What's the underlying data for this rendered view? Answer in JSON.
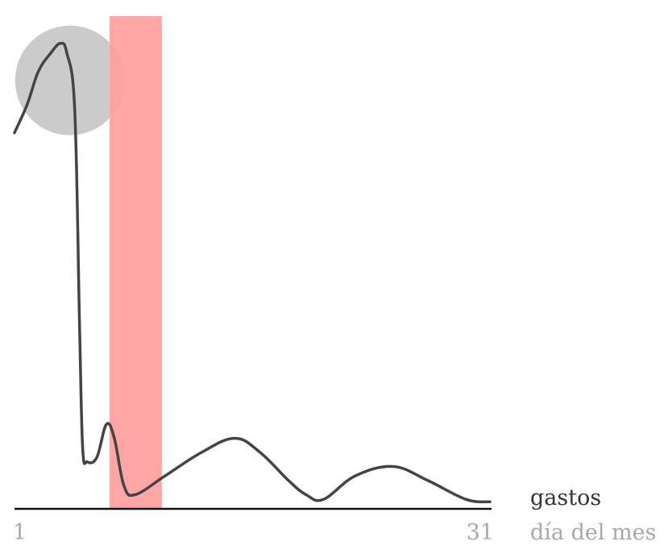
{
  "chart_data": {
    "type": "line",
    "x_axis": {
      "start_label": "1",
      "end_label": "31",
      "label": "día del mes"
    },
    "series": [
      {
        "name": "gastos",
        "points": [
          [
            1,
            0.8
          ],
          [
            1.8,
            0.86
          ],
          [
            2.5,
            0.93
          ],
          [
            3.3,
            0.97
          ],
          [
            3.9,
            0.99
          ],
          [
            4.3,
            0.97
          ],
          [
            4.8,
            0.85
          ],
          [
            5.1,
            0.4
          ],
          [
            5.3,
            0.13
          ],
          [
            5.6,
            0.1
          ],
          [
            6.2,
            0.11
          ],
          [
            6.8,
            0.18
          ],
          [
            7.3,
            0.15
          ],
          [
            7.9,
            0.05
          ],
          [
            8.6,
            0.03
          ],
          [
            10.5,
            0.07
          ],
          [
            12.8,
            0.12
          ],
          [
            14.9,
            0.15
          ],
          [
            16.5,
            0.12
          ],
          [
            18.3,
            0.06
          ],
          [
            19.4,
            0.03
          ],
          [
            20.5,
            0.02
          ],
          [
            22.5,
            0.07
          ],
          [
            24.9,
            0.09
          ],
          [
            27.1,
            0.06
          ],
          [
            29.5,
            0.02
          ],
          [
            31,
            0.015
          ]
        ]
      }
    ],
    "highlight_band": {
      "x_start": 7.0,
      "x_end": 10.3,
      "color": "#ff9f9f"
    },
    "highlight_circle": {
      "x": 4.8,
      "y": 0.98,
      "color": "#c8c8c8"
    },
    "line_color": "#444444",
    "axis_color": "#111111",
    "grid": false
  }
}
